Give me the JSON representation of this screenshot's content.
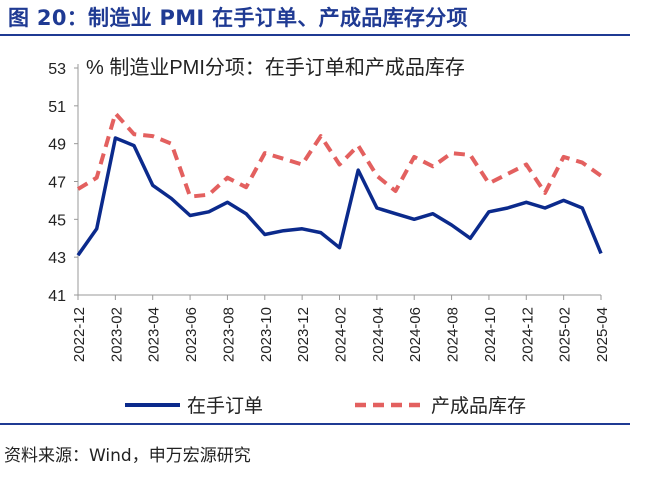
{
  "figure": {
    "title": "图 20：制造业 PMI 在手订单、产成品库存分项",
    "source": "资料来源：Wind，申万宏源研究"
  },
  "colors": {
    "title": "#1f3a93",
    "series_order": "#0b2a8c",
    "series_inventory": "#e3605f",
    "axis": "#999999"
  },
  "chart_data": {
    "type": "line",
    "title": "% 制造业PMI分项：在手订单和产成品库存",
    "xlabel": "",
    "ylabel": "%",
    "ylim": [
      41,
      53
    ],
    "yticks": [
      41,
      43,
      45,
      47,
      49,
      51,
      53
    ],
    "x": [
      "2022-12",
      "2023-01",
      "2023-02",
      "2023-03",
      "2023-04",
      "2023-05",
      "2023-06",
      "2023-07",
      "2023-08",
      "2023-09",
      "2023-10",
      "2023-11",
      "2023-12",
      "2024-01",
      "2024-02",
      "2024-03",
      "2024-04",
      "2024-05",
      "2024-06",
      "2024-07",
      "2024-08",
      "2024-09",
      "2024-10",
      "2024-11",
      "2024-12",
      "2025-01",
      "2025-02",
      "2025-03",
      "2025-04"
    ],
    "xtick_labels": [
      "2022-12",
      "2023-02",
      "2023-04",
      "2023-06",
      "2023-08",
      "2023-10",
      "2023-12",
      "2024-02",
      "2024-04",
      "2024-06",
      "2024-08",
      "2024-10",
      "2024-12",
      "2025-02",
      "2025-04"
    ],
    "series": [
      {
        "name": "在手订单",
        "style": "solid",
        "values": [
          43.1,
          44.5,
          49.3,
          48.9,
          46.8,
          46.1,
          45.2,
          45.4,
          45.9,
          45.3,
          44.2,
          44.4,
          44.5,
          44.3,
          43.5,
          47.6,
          45.6,
          45.3,
          45.0,
          45.3,
          44.7,
          44.0,
          45.4,
          45.6,
          45.9,
          45.6,
          46.0,
          45.6,
          43.2
        ]
      },
      {
        "name": "产成品库存",
        "style": "dashed",
        "values": [
          46.6,
          47.2,
          50.6,
          49.5,
          49.4,
          49.0,
          46.2,
          46.3,
          47.2,
          46.7,
          48.5,
          48.2,
          47.9,
          49.4,
          47.9,
          48.9,
          47.3,
          46.5,
          48.3,
          47.8,
          48.5,
          48.4,
          46.9,
          47.4,
          47.9,
          46.4,
          48.3,
          48.0,
          47.3
        ]
      }
    ],
    "legend_position": "bottom"
  }
}
